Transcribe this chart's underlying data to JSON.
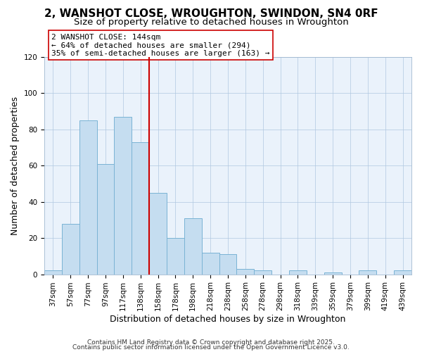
{
  "title": "2, WANSHOT CLOSE, WROUGHTON, SWINDON, SN4 0RF",
  "subtitle": "Size of property relative to detached houses in Wroughton",
  "xlabel": "Distribution of detached houses by size in Wroughton",
  "ylabel": "Number of detached properties",
  "bar_labels": [
    "37sqm",
    "57sqm",
    "77sqm",
    "97sqm",
    "117sqm",
    "138sqm",
    "158sqm",
    "178sqm",
    "198sqm",
    "218sqm",
    "238sqm",
    "258sqm",
    "278sqm",
    "298sqm",
    "318sqm",
    "339sqm",
    "359sqm",
    "379sqm",
    "399sqm",
    "419sqm",
    "439sqm"
  ],
  "bar_values": [
    2,
    28,
    85,
    61,
    87,
    73,
    45,
    20,
    31,
    12,
    11,
    3,
    2,
    0,
    2,
    0,
    1,
    0,
    2,
    0,
    2
  ],
  "bar_color": "#c5ddf0",
  "bar_edge_color": "#7ab3d4",
  "vline_x_index": 5,
  "vline_color": "#cc0000",
  "annotation_line1": "2 WANSHOT CLOSE: 144sqm",
  "annotation_line2": "← 64% of detached houses are smaller (294)",
  "annotation_line3": "35% of semi-detached houses are larger (163) →",
  "annotation_box_color": "#ffffff",
  "annotation_box_edge": "#cc0000",
  "ylim": [
    0,
    120
  ],
  "yticks": [
    0,
    20,
    40,
    60,
    80,
    100,
    120
  ],
  "footer1": "Contains HM Land Registry data © Crown copyright and database right 2025.",
  "footer2": "Contains public sector information licensed under the Open Government Licence v3.0.",
  "title_fontsize": 11,
  "subtitle_fontsize": 9.5,
  "axis_label_fontsize": 9,
  "tick_fontsize": 7.5,
  "annotation_fontsize": 8,
  "footer_fontsize": 6.5,
  "bg_color": "#eaf2fb"
}
